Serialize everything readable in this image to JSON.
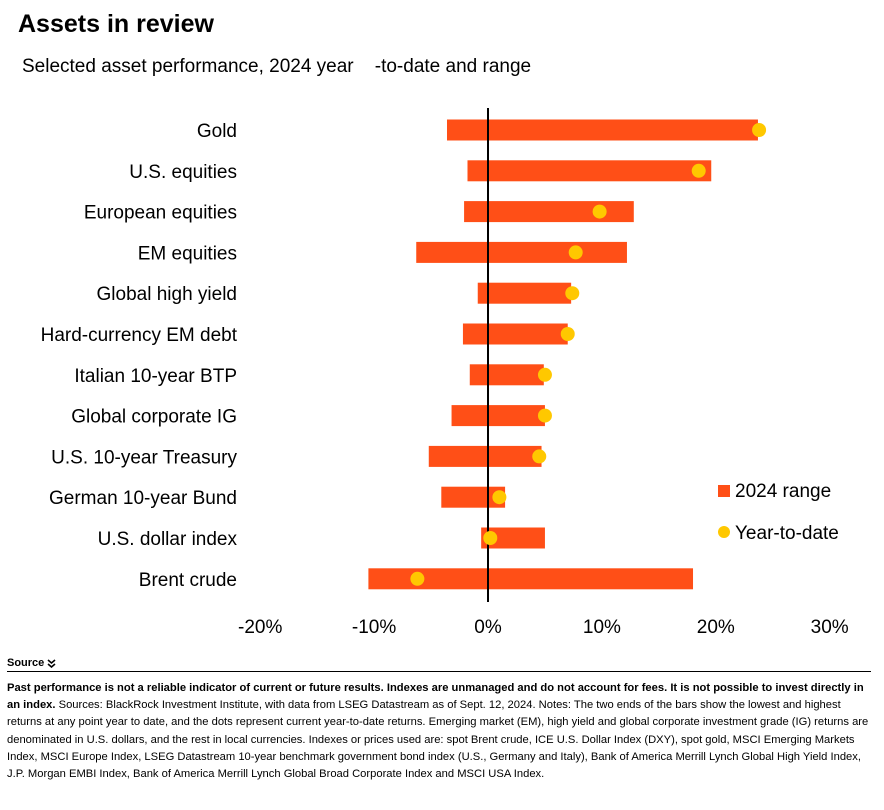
{
  "header": {
    "title": "Assets in review",
    "subtitle": "Selected asset performance, 2024 year    -to-date and range"
  },
  "colors": {
    "bar": "#ff4f17",
    "dot": "#ffc800",
    "zero_line": "#000000"
  },
  "chart_data": {
    "type": "bar",
    "orientation": "horizontal",
    "title": "",
    "xlabel": "",
    "ylabel": "",
    "xlim": [
      -20,
      30
    ],
    "x_ticks": [
      -20,
      -10,
      0,
      10,
      20,
      30
    ],
    "x_tick_labels": [
      "-20%",
      "-10%",
      "0%",
      "10%",
      "20%",
      "30%"
    ],
    "grid": false,
    "legend_position": "right",
    "categories": [
      "Gold",
      "U.S. equities",
      "European equities",
      "EM equities",
      "Global high yield",
      "Hard-currency EM debt",
      "Italian 10-year BTP",
      "Global corporate IG",
      "U.S. 10-year Treasury",
      "German 10-year Bund",
      "U.S. dollar index",
      "Brent crude"
    ],
    "series": [
      {
        "name": "2024 range",
        "mark": "range-bar",
        "low": [
          -3.6,
          -1.8,
          -2.1,
          -6.3,
          -0.9,
          -2.2,
          -1.6,
          -3.2,
          -5.2,
          -4.1,
          -0.6,
          -10.5
        ],
        "high": [
          23.7,
          19.6,
          12.8,
          12.2,
          7.3,
          7.0,
          4.9,
          5.0,
          4.7,
          1.5,
          5.0,
          18.0
        ]
      },
      {
        "name": "Year-to-date",
        "mark": "dot",
        "values": [
          23.8,
          18.5,
          9.8,
          7.7,
          7.4,
          7.0,
          5.0,
          5.0,
          4.5,
          1.0,
          0.2,
          -6.2
        ]
      }
    ]
  },
  "source": {
    "toggle_label": "Source",
    "bold_text": "Past performance is not a reliable indicator of current or future results. Indexes are unmanaged and do not account for fees. It is not possible to invest directly in an index.",
    "text": " Sources: BlackRock Investment Institute, with data from LSEG Datastream as of Sept. 12, 2024. Notes: The two ends of the bars show the lowest and highest returns at any point year to date, and the dots represent current year-to-date returns. Emerging market (EM), high yield and global corporate investment grade (IG) returns are denominated in U.S. dollars, and the rest in local currencies. Indexes or prices used are: spot Brent crude, ICE U.S. Dollar Index (DXY), spot gold, MSCI Emerging Markets Index, MSCI Europe Index, LSEG Datastream 10-year benchmark government bond index (U.S., Germany and Italy), Bank of America Merrill Lynch Global High Yield Index, J.P. Morgan EMBI Index, Bank of America Merrill Lynch Global Broad Corporate Index and MSCI USA Index."
  }
}
